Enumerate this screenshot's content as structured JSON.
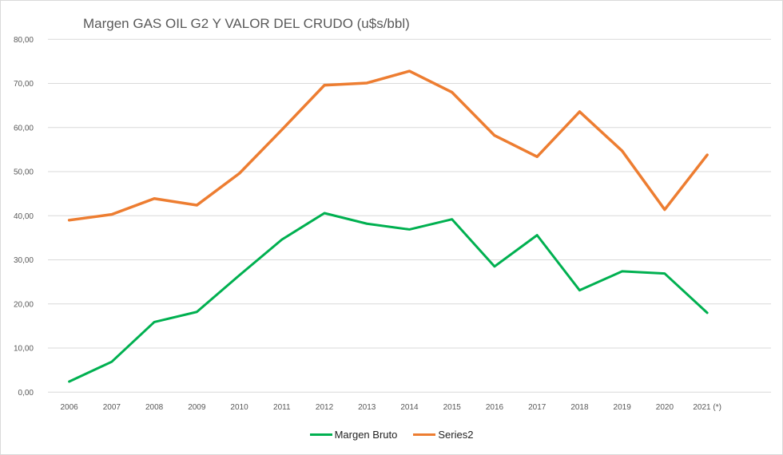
{
  "chart_data": {
    "type": "line",
    "title": "Margen GAS OIL G2 Y VALOR DEL CRUDO (u$s/bbl)",
    "xlabel": "",
    "ylabel": "",
    "categories": [
      "2006",
      "2007",
      "2008",
      "2009",
      "2010",
      "2011",
      "2012",
      "2013",
      "2014",
      "2015",
      "2016",
      "2017",
      "2018",
      "2019",
      "2020",
      "2021 (*)"
    ],
    "ylim": [
      0,
      80
    ],
    "yticks": [
      "0,00",
      "10,00",
      "20,00",
      "30,00",
      "40,00",
      "50,00",
      "60,00",
      "70,00",
      "80,00"
    ],
    "grid": true,
    "legend_position": "bottom",
    "series": [
      {
        "name": "Margen Bruto",
        "color": "#00b050",
        "values": [
          2.4,
          6.9,
          15.9,
          18.2,
          26.5,
          34.6,
          40.6,
          38.2,
          36.9,
          39.2,
          28.5,
          35.6,
          23.1,
          27.4,
          26.9,
          18.0
        ]
      },
      {
        "name": "Series2",
        "color": "#ed7d31",
        "values": [
          39.0,
          40.3,
          43.9,
          42.4,
          49.6,
          59.5,
          69.6,
          70.1,
          72.8,
          68.0,
          58.2,
          53.4,
          63.6,
          54.7,
          41.4,
          53.8
        ]
      }
    ]
  }
}
